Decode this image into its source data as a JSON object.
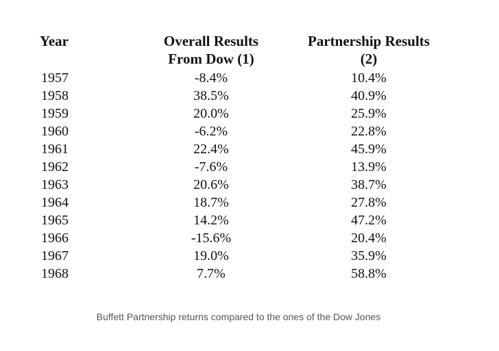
{
  "table": {
    "headers": {
      "year": "Year",
      "dow_line1": "Overall Results",
      "dow_line2": "From Dow (1)",
      "partnership_line1": "Partnership Results",
      "partnership_line2": "(2)"
    },
    "rows": [
      {
        "year": "1957",
        "dow": "-8.4%",
        "partnership": "10.4%"
      },
      {
        "year": "1958",
        "dow": "38.5%",
        "partnership": "40.9%"
      },
      {
        "year": "1959",
        "dow": "20.0%",
        "partnership": "25.9%"
      },
      {
        "year": "1960",
        "dow": "-6.2%",
        "partnership": "22.8%"
      },
      {
        "year": "1961",
        "dow": "22.4%",
        "partnership": "45.9%"
      },
      {
        "year": "1962",
        "dow": "-7.6%",
        "partnership": "13.9%"
      },
      {
        "year": "1963",
        "dow": "20.6%",
        "partnership": "38.7%"
      },
      {
        "year": "1964",
        "dow": "18.7%",
        "partnership": "27.8%"
      },
      {
        "year": "1965",
        "dow": "14.2%",
        "partnership": "47.2%"
      },
      {
        "year": "1966",
        "dow": "-15.6%",
        "partnership": "20.4%"
      },
      {
        "year": "1967",
        "dow": "19.0%",
        "partnership": "35.9%"
      },
      {
        "year": "1968",
        "dow": "7.7%",
        "partnership": "58.8%"
      }
    ]
  },
  "caption": "Buffett Partnership returns compared to the ones of the Dow Jones"
}
